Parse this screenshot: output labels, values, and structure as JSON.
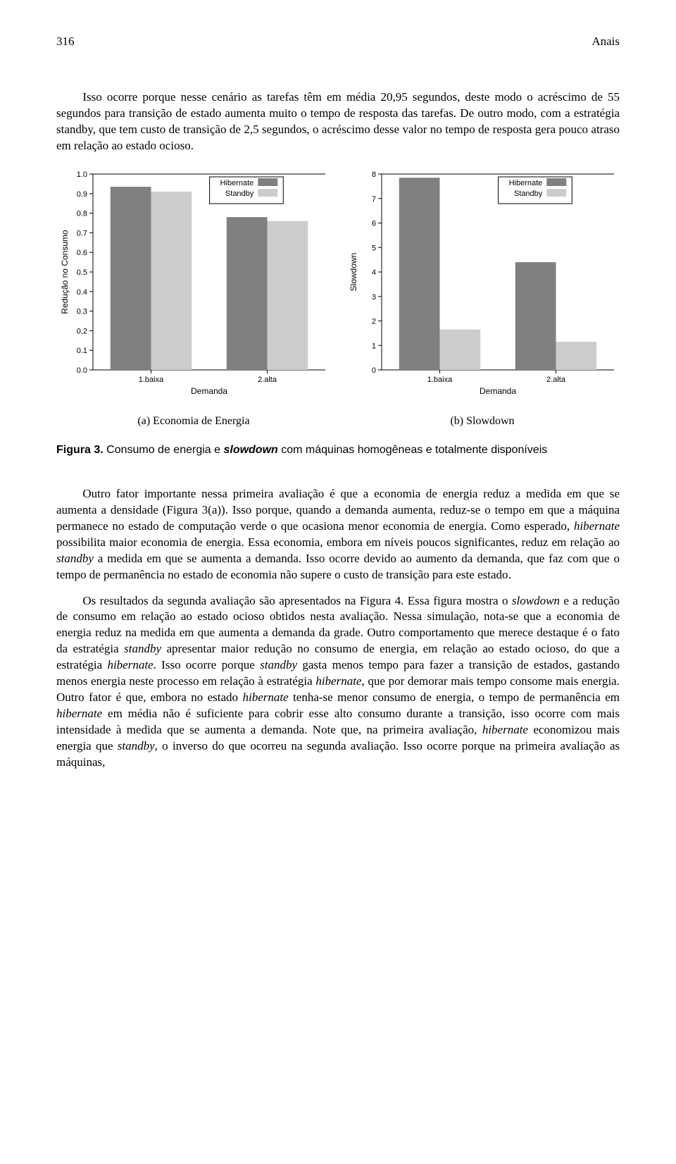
{
  "header": {
    "page_number": "316",
    "running_head": "Anais"
  },
  "para_intro": "Isso ocorre porque nesse cenário as tarefas têm em média 20,95 segundos, deste modo o acréscimo de 55 segundos para transição de estado aumenta muito o tempo de resposta das tarefas. De outro modo, com a estratégia standby, que tem custo de transição de 2,5 segundos, o acréscimo desse valor no tempo de resposta gera pouco atraso em relação ao estado ocioso.",
  "chart_a": {
    "type": "bar",
    "y_label": "Redução no Consumo",
    "x_label": "Demanda",
    "categories": [
      "1.baixa",
      "2.alta"
    ],
    "series": [
      {
        "name": "Hibernate",
        "color": "#808080",
        "values": [
          0.935,
          0.78
        ]
      },
      {
        "name": "Standby",
        "color": "#cccccc",
        "values": [
          0.91,
          0.76
        ]
      }
    ],
    "ylim": [
      0.0,
      1.0
    ],
    "ytick_step": 0.1,
    "background_color": "#ffffff",
    "plot_box_color": "#000000",
    "axis_fontsize": 11,
    "label_fontsize": 12,
    "bar_group_width": 0.7,
    "legend_box": true
  },
  "chart_b": {
    "type": "bar",
    "y_label": "Slowdown",
    "x_label": "Demanda",
    "categories": [
      "1.baixa",
      "2.alta"
    ],
    "series": [
      {
        "name": "Hibernate",
        "color": "#808080",
        "values": [
          7.85,
          4.4
        ]
      },
      {
        "name": "Standby",
        "color": "#cccccc",
        "values": [
          1.65,
          1.15
        ]
      }
    ],
    "ylim": [
      0,
      8
    ],
    "ytick_step": 1,
    "background_color": "#ffffff",
    "plot_box_color": "#000000",
    "axis_fontsize": 11,
    "label_fontsize": 12,
    "bar_group_width": 0.7,
    "legend_box": true
  },
  "subcaption_a": "(a) Economia de Energia",
  "subcaption_b": "(b) Slowdown",
  "figure_caption_lead": "Figura 3.",
  "figure_caption_rest": " Consumo de energia e slowdown com máquinas homogêneas e totalmente disponíveis",
  "para_body_1": "Outro fator importante nessa primeira avaliação é que a economia de energia reduz a medida em que se aumenta a densidade (Figura 3(a)). Isso porque, quando a demanda aumenta, reduz-se o tempo em que a máquina permanece no estado de computação verde o que ocasiona menor economia de energia. Como esperado, hibernate possibilita maior economia de energia. Essa economia, embora em níveis poucos significantes, reduz em relação ao standby a medida em que se aumenta a demanda. Isso ocorre devido ao aumento da demanda, que faz com que o tempo de permanência no estado de economia não supere o custo de transição para este estado.",
  "para_body_2": "Os resultados da segunda avaliação são apresentados na Figura 4. Essa figura mostra o slowdown e a redução de consumo em relação ao estado ocioso obtidos nesta avaliação. Nessa simulação, nota-se que a economia de energia reduz na medida em que aumenta a demanda da grade. Outro comportamento que merece destaque é o fato da estratégia standby apresentar maior redução no consumo de energia, em relação ao estado ocioso, do que a estratégia hibernate. Isso ocorre porque standby gasta menos tempo para fazer a transição de estados, gastando menos energia neste processo em relação à estratégia hibernate, que por demorar mais tempo consome mais energia. Outro fator é que, embora no estado hibernate tenha-se menor consumo de energia, o tempo de permanência em hibernate em média não é suficiente para cobrir esse alto consumo durante a transição, isso ocorre com mais intensidade à medida que se aumenta a demanda. Note que, na primeira avaliação, hibernate economizou mais energia que standby, o inverso do que ocorreu na segunda avaliação. Isso ocorre porque na primeira avaliação as máquinas,"
}
